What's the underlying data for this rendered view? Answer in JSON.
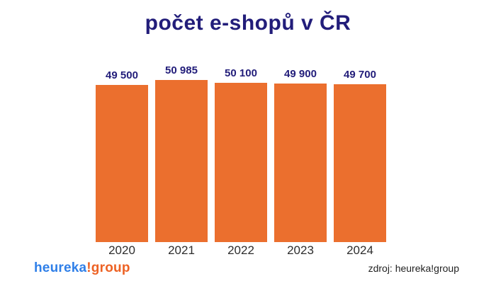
{
  "colors": {
    "navy": "#221D7A",
    "bar_orange": "#EB6F2E",
    "logo_blue": "#2F7FE8",
    "logo_orange": "#ED6224",
    "text_dark": "#2D2D2D",
    "background": "#FFFFFF"
  },
  "chart_data": {
    "type": "bar",
    "title": "počet e-shopů v ČR",
    "categories": [
      "2020",
      "2021",
      "2022",
      "2023",
      "2024"
    ],
    "values": [
      49500,
      50985,
      50100,
      49900,
      49700
    ],
    "value_labels": [
      "49 500",
      "50 985",
      "50 100",
      "49 900",
      "49 700"
    ],
    "xlabel": "",
    "ylabel": "",
    "ylim": [
      0,
      50985
    ],
    "grid": false,
    "legend": "none",
    "bar_color": "#EB6F2E"
  },
  "footer": {
    "logo_blue": "heureka",
    "logo_orange": "!group",
    "source": "zdroj: heureka!group"
  }
}
